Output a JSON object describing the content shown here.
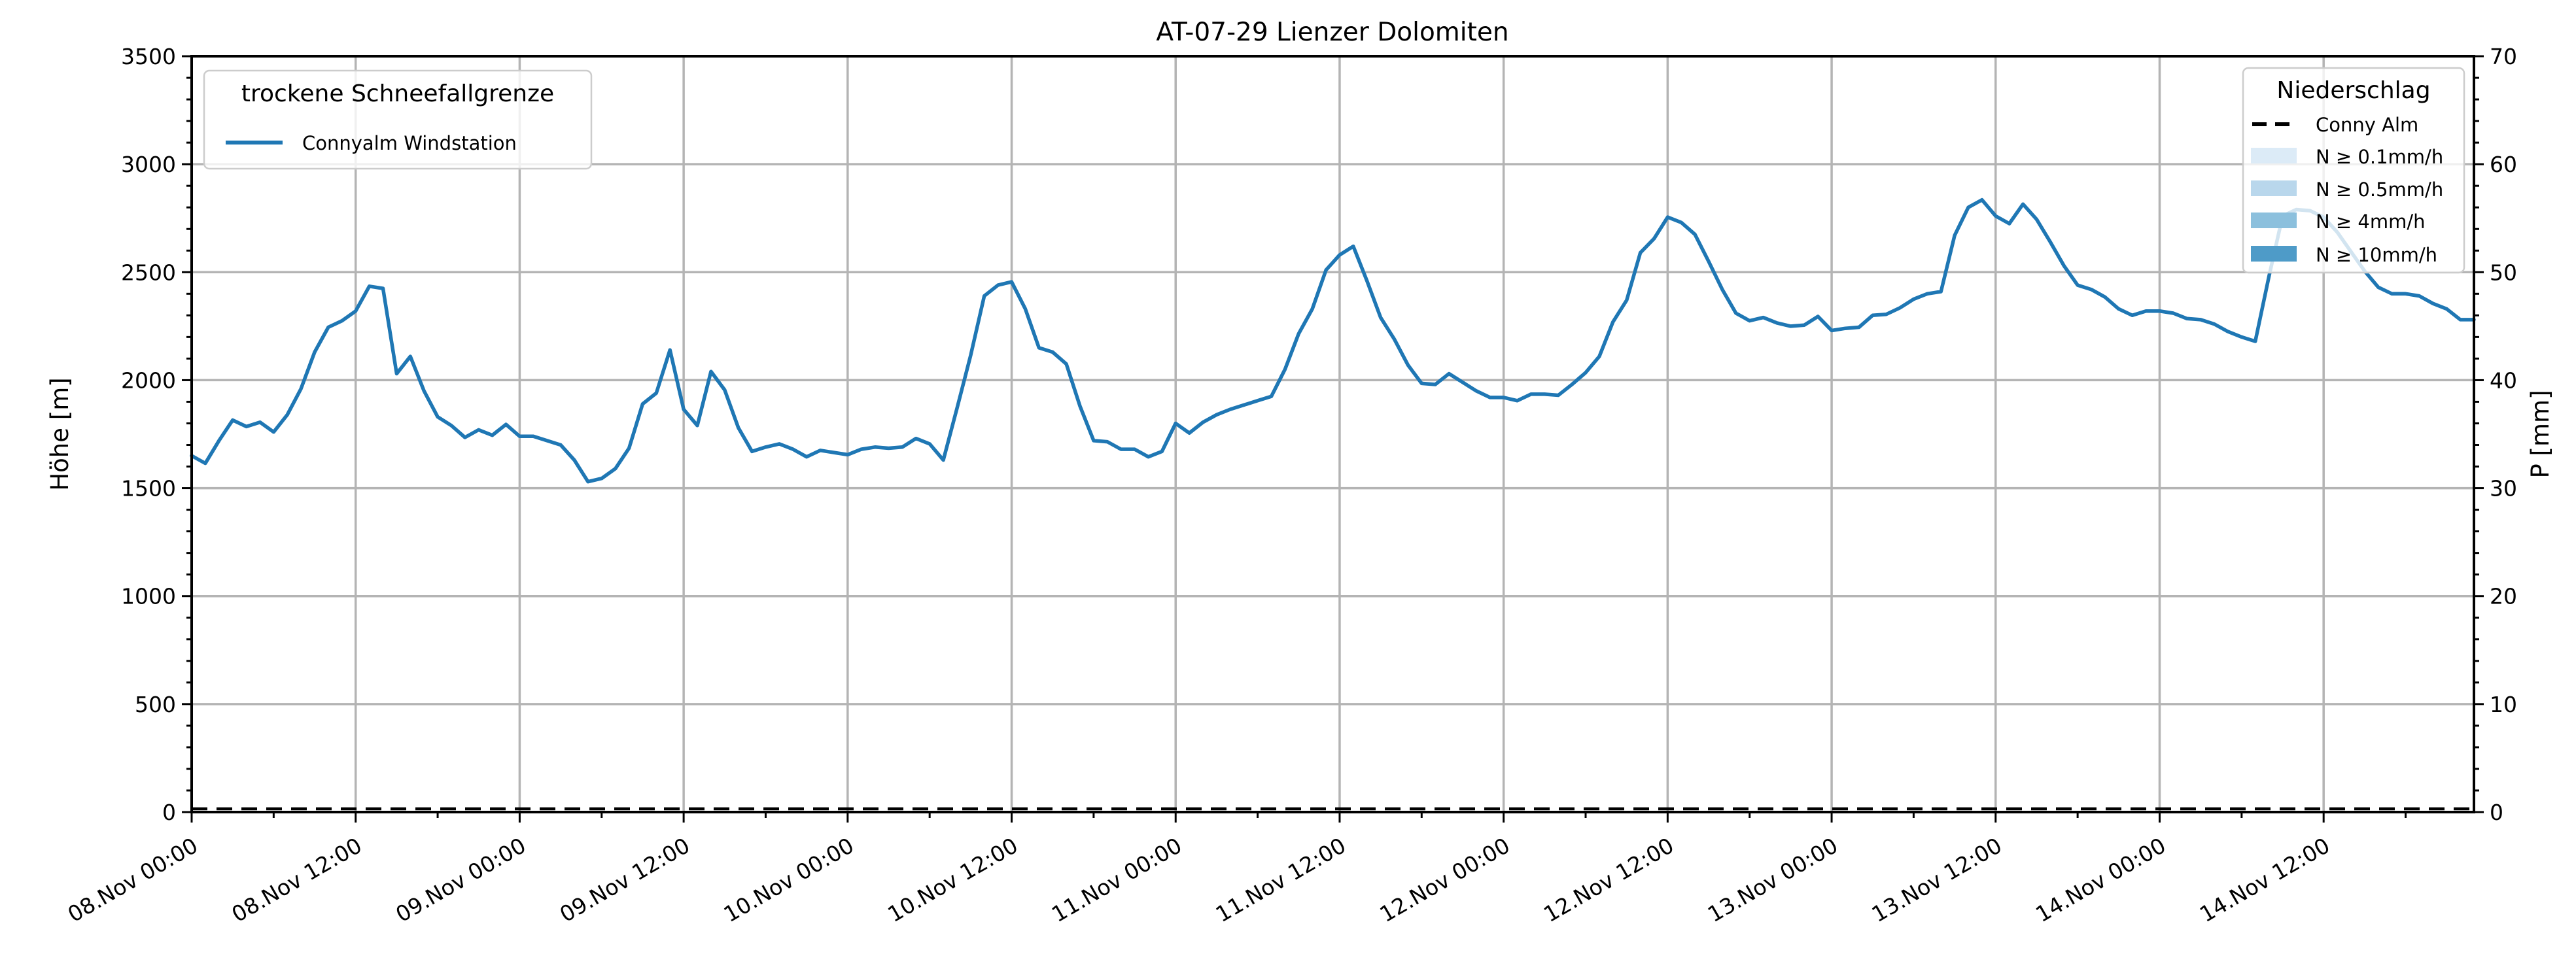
{
  "title": "AT-07-29 Lienzer Dolomiten",
  "axes": {
    "y_left": {
      "label": "Höhe [m]",
      "min": 0,
      "max": 3500,
      "major_step": 500,
      "minor_step": 100,
      "tick_labels": [
        "0",
        "500",
        "1000",
        "1500",
        "2000",
        "2500",
        "3000",
        "3500"
      ]
    },
    "y_right": {
      "label": "P [mm]",
      "min": 0,
      "max": 70,
      "major_step": 10,
      "minor_step": 2,
      "tick_labels": [
        "0",
        "10",
        "20",
        "30",
        "40",
        "50",
        "60",
        "70"
      ]
    },
    "x": {
      "total_hours": 167,
      "major_step_hours": 12,
      "minor_step_hours": 6,
      "tick_labels": [
        "08.Nov 00:00",
        "08.Nov 12:00",
        "09.Nov 00:00",
        "09.Nov 12:00",
        "10.Nov 00:00",
        "10.Nov 12:00",
        "11.Nov 00:00",
        "11.Nov 12:00",
        "12.Nov 00:00",
        "12.Nov 12:00",
        "13.Nov 00:00",
        "13.Nov 12:00",
        "14.Nov 00:00",
        "14.Nov 12:00"
      ]
    }
  },
  "legend_snowline": {
    "title": "trockene Schneefallgrenze",
    "entries": [
      {
        "label": "Connyalm Windstation",
        "color": "#1f77b4",
        "style": "solid-line"
      }
    ]
  },
  "legend_precip": {
    "title": "Niederschlag",
    "entries": [
      {
        "label": "Conny Alm",
        "color": "#000000",
        "style": "dashed-line"
      },
      {
        "label": "N ≥ 0.1mm/h",
        "color": "#dcebf7",
        "style": "patch"
      },
      {
        "label": "N ≥ 0.5mm/h",
        "color": "#b9d7ec",
        "style": "patch"
      },
      {
        "label": "N ≥ 4mm/h",
        "color": "#8cc0dd",
        "style": "patch"
      },
      {
        "label": "N ≥ 10mm/h",
        "color": "#4e9bc8",
        "style": "patch"
      }
    ]
  },
  "colors": {
    "line": "#1f77b4",
    "grid": "#b4b4b4",
    "spine": "#000000",
    "background": "#ffffff"
  },
  "chart_data": {
    "type": "line",
    "title": "AT-07-29 Lienzer Dolomiten",
    "xlabel": "",
    "ylabel_left": "Höhe [m]",
    "ylabel_right": "P [mm]",
    "x_unit": "hours since 08.Nov 00:00 (hourly values, axis ends 14.Nov 23:00)",
    "xlim_hours": [
      0,
      167
    ],
    "ylim_left": [
      0,
      3500
    ],
    "ylim_right": [
      0,
      70
    ],
    "grid": true,
    "legend_positions": [
      "upper left",
      "upper right"
    ],
    "series": [
      {
        "name": "Connyalm Windstation (trockene Schneefallgrenze)",
        "axis": "left",
        "color": "#1f77b4",
        "style": "solid",
        "values": [
          1650,
          1615,
          1720,
          1815,
          1785,
          1805,
          1760,
          1840,
          1960,
          2130,
          2245,
          2275,
          2320,
          2435,
          2425,
          2030,
          2110,
          1950,
          1830,
          1790,
          1735,
          1770,
          1745,
          1795,
          1740,
          1740,
          1720,
          1700,
          1630,
          1530,
          1545,
          1590,
          1685,
          1890,
          1940,
          2140,
          1865,
          1790,
          2040,
          1955,
          1780,
          1670,
          1690,
          1705,
          1680,
          1645,
          1675,
          1665,
          1655,
          1680,
          1690,
          1685,
          1690,
          1730,
          1705,
          1630,
          1870,
          2115,
          2390,
          2440,
          2455,
          2330,
          2150,
          2130,
          2075,
          1880,
          1720,
          1715,
          1680,
          1680,
          1645,
          1670,
          1800,
          1755,
          1805,
          1840,
          1865,
          1885,
          1905,
          1925,
          2050,
          2215,
          2330,
          2510,
          2580,
          2620,
          2460,
          2290,
          2190,
          2070,
          1985,
          1980,
          2030,
          1990,
          1950,
          1920,
          1920,
          1905,
          1935,
          1935,
          1930,
          1980,
          2035,
          2110,
          2270,
          2370,
          2590,
          2655,
          2755,
          2730,
          2675,
          2550,
          2420,
          2310,
          2275,
          2290,
          2265,
          2250,
          2255,
          2295,
          2230,
          2240,
          2245,
          2300,
          2305,
          2335,
          2375,
          2400,
          2410,
          2670,
          2800,
          2835,
          2760,
          2725,
          2815,
          2745,
          2640,
          2530,
          2440,
          2420,
          2385,
          2330,
          2300,
          2320,
          2320,
          2310,
          2285,
          2280,
          2260,
          2225,
          2200,
          2180,
          2480,
          2760,
          2790,
          2785,
          2755,
          2685,
          2595,
          2505,
          2430,
          2400,
          2400,
          2390,
          2355,
          2330,
          2280,
          2280
        ]
      },
      {
        "name": "Conny Alm (Niederschlag)",
        "axis": "right",
        "color": "#000000",
        "style": "dashed",
        "constant_value": 0
      }
    ]
  }
}
